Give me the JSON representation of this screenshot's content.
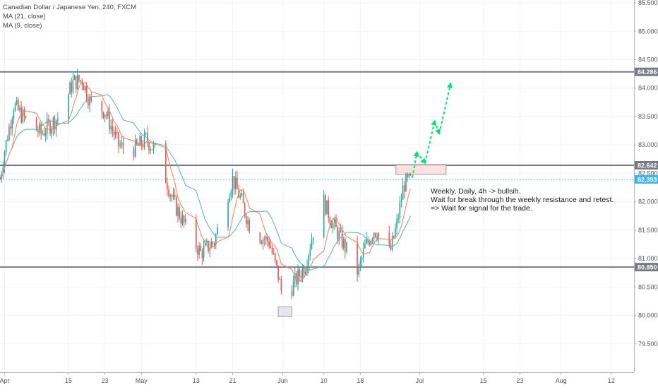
{
  "legend": {
    "symbol": "Canadian Dollar / Japanese Yen, 240, FXCM",
    "ma21": "MA (21, close)",
    "ma9": "MA (9, close)"
  },
  "annotation": {
    "line1": "Weekly, Daily, 4h -> bullsih.",
    "line2": "Wait for break through the weekly resistance and retest.",
    "line3": "=> Wait for signal for the trade."
  },
  "colors": {
    "up": "#26a69a",
    "down": "#ef5350",
    "ma21": "#4fb3bf",
    "ma9": "#f57c52",
    "resistance": "#787b86",
    "current": "#4fc3f7",
    "arrow": "#00e676",
    "zone_fill": "#fbdcdc",
    "zone_stroke": "#9e9e9e"
  },
  "chart_data": {
    "type": "candlestick",
    "title": "Canadian Dollar / Japanese Yen, 240, FXCM",
    "ylim": [
      79.0,
      85.55
    ],
    "y_ticks": [
      "79.500",
      "80.000",
      "80.500",
      "81.000",
      "81.500",
      "82.000",
      "82.500",
      "83.000",
      "83.500",
      "84.000",
      "84.500",
      "85.000",
      "85.500"
    ],
    "x_ticks": [
      {
        "label": "Apr",
        "day": 0
      },
      {
        "label": "15",
        "day": 14
      },
      {
        "label": "23",
        "day": 22
      },
      {
        "label": "May",
        "day": 30
      },
      {
        "label": "13",
        "day": 42
      },
      {
        "label": "21",
        "day": 50
      },
      {
        "label": "Jun",
        "day": 61
      },
      {
        "label": "10",
        "day": 70
      },
      {
        "label": "18",
        "day": 78
      },
      {
        "label": "Jul",
        "day": 91
      },
      {
        "label": "15",
        "day": 105
      },
      {
        "label": "23",
        "day": 113
      },
      {
        "label": "Aug",
        "day": 122
      },
      {
        "label": "12",
        "day": 133
      }
    ],
    "x_range_days": [
      -1,
      138
    ],
    "horizontal_levels": [
      {
        "value": 84.286,
        "label": "84.286",
        "kind": "resistance"
      },
      {
        "value": 82.642,
        "label": "82.642",
        "kind": "resistance"
      },
      {
        "value": 82.393,
        "label": "82.393",
        "kind": "current"
      },
      {
        "value": 80.85,
        "label": "80.850",
        "kind": "support"
      }
    ],
    "key_points": [
      {
        "day": -1,
        "close": 82.4
      },
      {
        "day": 0,
        "close": 82.9
      },
      {
        "day": 2,
        "close": 83.7
      },
      {
        "day": 5,
        "close": 83.4
      },
      {
        "day": 8,
        "close": 83.2
      },
      {
        "day": 12,
        "close": 83.5
      },
      {
        "day": 15,
        "close": 84.1
      },
      {
        "day": 17,
        "close": 84.15
      },
      {
        "day": 19,
        "close": 83.7
      },
      {
        "day": 22,
        "close": 83.6
      },
      {
        "day": 25,
        "close": 83.0
      },
      {
        "day": 27,
        "close": 82.9
      },
      {
        "day": 29,
        "close": 82.95
      },
      {
        "day": 31,
        "close": 83.1
      },
      {
        "day": 33,
        "close": 82.9
      },
      {
        "day": 35,
        "close": 82.5
      },
      {
        "day": 37,
        "close": 82.0
      },
      {
        "day": 40,
        "close": 81.5
      },
      {
        "day": 43,
        "close": 81.1
      },
      {
        "day": 46,
        "close": 81.3
      },
      {
        "day": 48,
        "close": 81.9
      },
      {
        "day": 50,
        "close": 82.4
      },
      {
        "day": 52,
        "close": 82.0
      },
      {
        "day": 54,
        "close": 81.5
      },
      {
        "day": 56,
        "close": 81.4
      },
      {
        "day": 58,
        "close": 81.3
      },
      {
        "day": 60,
        "close": 80.7
      },
      {
        "day": 61.5,
        "close": 80.1
      },
      {
        "day": 63,
        "close": 80.5
      },
      {
        "day": 66,
        "close": 80.9
      },
      {
        "day": 68,
        "close": 81.6
      },
      {
        "day": 70,
        "close": 82.0
      },
      {
        "day": 72,
        "close": 81.6
      },
      {
        "day": 74,
        "close": 81.3
      },
      {
        "day": 76,
        "close": 81.0
      },
      {
        "day": 77.5,
        "close": 80.75
      },
      {
        "day": 79,
        "close": 81.2
      },
      {
        "day": 81,
        "close": 81.5
      },
      {
        "day": 83,
        "close": 81.4
      },
      {
        "day": 84.5,
        "close": 81.1
      },
      {
        "day": 86,
        "close": 81.6
      },
      {
        "day": 87.5,
        "close": 82.3
      },
      {
        "day": 89.3,
        "close": 82.39
      }
    ],
    "zones": [
      {
        "day_start": 85.8,
        "day_end": 96.8,
        "y_low": 82.48,
        "y_high": 82.66,
        "name": "resistance-zone"
      },
      {
        "day_start": 60.0,
        "day_end": 63.0,
        "y_low": 79.98,
        "y_high": 80.15,
        "name": "bottom-zone"
      }
    ],
    "projected_path": [
      {
        "day": 89.4,
        "value": 82.42
      },
      {
        "day": 90.4,
        "value": 82.87
      },
      {
        "day": 92.2,
        "value": 82.68
      },
      {
        "day": 94.3,
        "value": 83.42
      },
      {
        "day": 95.3,
        "value": 83.2
      },
      {
        "day": 97.8,
        "value": 84.08
      }
    ]
  }
}
